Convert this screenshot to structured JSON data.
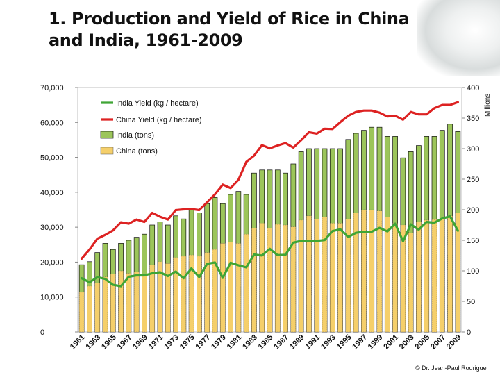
{
  "title": "1. Production and Yield of Rice in China and India, 1961-2009",
  "credit": "© Dr. Jean-Paul Rodrigue",
  "chart_data": {
    "type": "bar+line",
    "title": "1. Production and Yield of Rice in China and India, 1961-2009",
    "x": [
      1961,
      1962,
      1963,
      1964,
      1965,
      1966,
      1967,
      1968,
      1969,
      1970,
      1971,
      1972,
      1973,
      1974,
      1975,
      1976,
      1977,
      1978,
      1979,
      1980,
      1981,
      1982,
      1983,
      1984,
      1985,
      1986,
      1987,
      1988,
      1989,
      1990,
      1991,
      1992,
      1993,
      1994,
      1995,
      1996,
      1997,
      1998,
      1999,
      2000,
      2001,
      2002,
      2003,
      2004,
      2005,
      2006,
      2007,
      2008,
      2009
    ],
    "x_tick_labels": [
      "1961",
      "1963",
      "1965",
      "1967",
      "1969",
      "1971",
      "1973",
      "1975",
      "1977",
      "1979",
      "1981",
      "1983",
      "1985",
      "1987",
      "1989",
      "1991",
      "1993",
      "1995",
      "1997",
      "1999",
      "2001",
      "2003",
      "2005",
      "2007",
      "2009"
    ],
    "left_axis": {
      "label": "",
      "ylim": [
        0,
        70000
      ],
      "ticks": [
        "0",
        "10,000",
        "20,000",
        "30,000",
        "40,000",
        "50,000",
        "60,000",
        "70,000"
      ]
    },
    "right_axis": {
      "label": "Millions",
      "ylim": [
        0,
        400
      ],
      "ticks": [
        "0",
        "50",
        "100",
        "150",
        "200",
        "250",
        "300",
        "350",
        "400"
      ]
    },
    "legend": [
      "India Yield (kg / hectare)",
      "China Yield (kg / hectare)",
      "India (tons)",
      "China (tons)"
    ],
    "series": [
      {
        "name": "India Yield (kg / hectare)",
        "type": "line",
        "axis": "left",
        "color": "#3fa535",
        "values": [
          15400,
          14200,
          15700,
          15200,
          13500,
          13100,
          15800,
          16200,
          16200,
          16800,
          17100,
          16000,
          17300,
          15400,
          18200,
          15700,
          19500,
          19900,
          15500,
          19800,
          19100,
          18500,
          22200,
          21900,
          23800,
          22000,
          22100,
          25600,
          26100,
          26100,
          26100,
          26300,
          28900,
          29400,
          27200,
          28400,
          28700,
          28700,
          29800,
          28800,
          31000,
          26000,
          30800,
          29300,
          31500,
          31300,
          32500,
          33100,
          29000
        ]
      },
      {
        "name": "China Yield (kg / hectare)",
        "type": "line",
        "axis": "left",
        "color": "#dd2222",
        "values": [
          21000,
          23600,
          26700,
          27800,
          29100,
          31400,
          31000,
          32200,
          31500,
          34100,
          33000,
          32200,
          34900,
          35100,
          35200,
          34900,
          37100,
          39400,
          42200,
          41200,
          43600,
          48700,
          50500,
          53500,
          52600,
          53400,
          54100,
          52800,
          54900,
          57200,
          56800,
          58200,
          58100,
          60100,
          61900,
          63000,
          63400,
          63400,
          62800,
          61700,
          61900,
          60800,
          63000,
          62300,
          62300,
          64100,
          65000,
          65000,
          65800
        ]
      },
      {
        "name": "India (tons)",
        "type": "bar",
        "axis": "right",
        "color": "#9cc55a",
        "values": [
          110,
          115,
          130,
          145,
          135,
          145,
          150,
          155,
          160,
          175,
          180,
          175,
          190,
          185,
          200,
          195,
          210,
          220,
          210,
          225,
          230,
          225,
          260,
          265,
          265,
          265,
          260,
          275,
          295,
          300,
          300,
          300,
          300,
          300,
          315,
          325,
          330,
          335,
          335,
          320,
          320,
          285,
          295,
          305,
          320,
          320,
          330,
          340,
          328
        ]
      },
      {
        "name": "China (tons)",
        "type": "bar",
        "axis": "right",
        "color": "#f5cf6a",
        "values": [
          65,
          75,
          80,
          90,
          95,
          100,
          96,
          98,
          95,
          110,
          115,
          112,
          122,
          124,
          126,
          124,
          130,
          135,
          145,
          147,
          145,
          160,
          170,
          178,
          170,
          176,
          175,
          172,
          183,
          190,
          185,
          188,
          178,
          178,
          185,
          195,
          200,
          200,
          198,
          188,
          178,
          175,
          162,
          180,
          183,
          184,
          186,
          190,
          195
        ]
      }
    ]
  }
}
